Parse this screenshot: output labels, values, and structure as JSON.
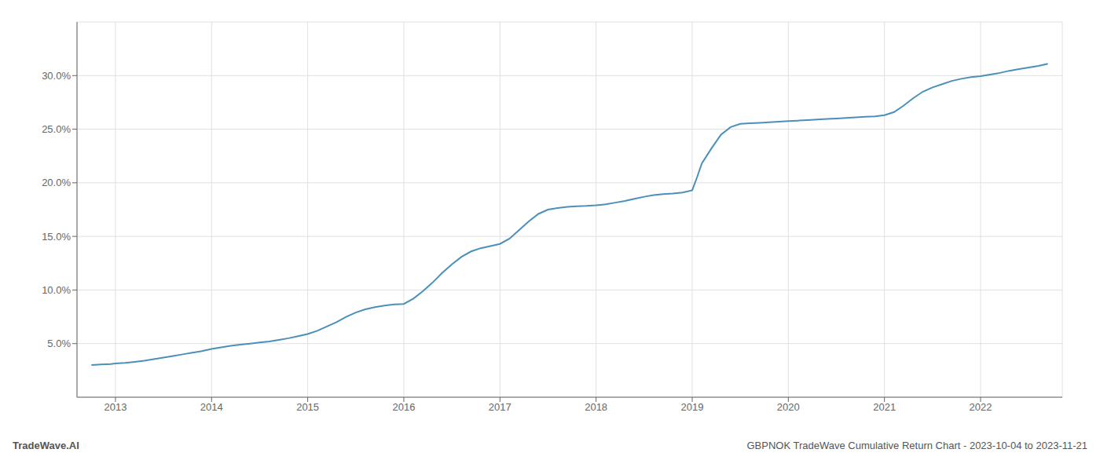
{
  "chart_data": {
    "type": "line",
    "annotations": [
      "TradeWave.AI",
      "GBPNOK TradeWave Cumulative Return Chart - 2023-10-04 to 2023-11-21"
    ],
    "x": [
      2012.75,
      2012.85,
      2012.95,
      2013.0,
      2013.1,
      2013.2,
      2013.3,
      2013.4,
      2013.5,
      2013.6,
      2013.7,
      2013.8,
      2013.9,
      2014.0,
      2014.1,
      2014.2,
      2014.3,
      2014.4,
      2014.5,
      2014.6,
      2014.7,
      2014.8,
      2014.9,
      2015.0,
      2015.1,
      2015.2,
      2015.3,
      2015.4,
      2015.5,
      2015.6,
      2015.7,
      2015.8,
      2015.9,
      2016.0,
      2016.1,
      2016.2,
      2016.3,
      2016.4,
      2016.5,
      2016.6,
      2016.7,
      2016.8,
      2016.9,
      2017.0,
      2017.1,
      2017.2,
      2017.3,
      2017.4,
      2017.5,
      2017.6,
      2017.7,
      2017.8,
      2017.9,
      2018.0,
      2018.1,
      2018.2,
      2018.3,
      2018.4,
      2018.5,
      2018.6,
      2018.7,
      2018.8,
      2018.9,
      2019.0,
      2019.05,
      2019.1,
      2019.2,
      2019.3,
      2019.4,
      2019.5,
      2019.6,
      2019.7,
      2019.8,
      2019.9,
      2020.0,
      2020.1,
      2020.2,
      2020.3,
      2020.4,
      2020.5,
      2020.6,
      2020.7,
      2020.8,
      2020.9,
      2021.0,
      2021.1,
      2021.2,
      2021.3,
      2021.4,
      2021.5,
      2021.6,
      2021.7,
      2021.8,
      2021.9,
      2022.0,
      2022.1,
      2022.2,
      2022.3,
      2022.4,
      2022.5,
      2022.6,
      2022.7
    ],
    "values": [
      3.0,
      3.05,
      3.1,
      3.15,
      3.2,
      3.3,
      3.4,
      3.55,
      3.7,
      3.85,
      4.0,
      4.15,
      4.3,
      4.5,
      4.65,
      4.8,
      4.9,
      5.0,
      5.1,
      5.2,
      5.35,
      5.5,
      5.7,
      5.9,
      6.2,
      6.6,
      7.0,
      7.5,
      7.9,
      8.2,
      8.4,
      8.55,
      8.65,
      8.7,
      9.2,
      9.9,
      10.7,
      11.6,
      12.4,
      13.1,
      13.6,
      13.9,
      14.1,
      14.3,
      14.8,
      15.6,
      16.4,
      17.1,
      17.5,
      17.65,
      17.75,
      17.82,
      17.85,
      17.9,
      18.0,
      18.15,
      18.3,
      18.5,
      18.7,
      18.85,
      18.95,
      19.0,
      19.1,
      19.3,
      20.5,
      21.8,
      23.2,
      24.5,
      25.2,
      25.5,
      25.55,
      25.6,
      25.65,
      25.7,
      25.75,
      25.8,
      25.85,
      25.9,
      25.95,
      26.0,
      26.05,
      26.1,
      26.15,
      26.2,
      26.3,
      26.6,
      27.2,
      27.9,
      28.5,
      28.9,
      29.2,
      29.5,
      29.7,
      29.85,
      29.95,
      30.1,
      30.25,
      30.45,
      30.6,
      30.75,
      30.9,
      31.1
    ],
    "color": "#4a90b8",
    "xlim": [
      2012.6,
      2022.85
    ],
    "xticks": [
      2013,
      2014,
      2015,
      2016,
      2017,
      2018,
      2019,
      2020,
      2021,
      2022
    ],
    "ylim": [
      0,
      35
    ],
    "yticks": [
      {
        "value": 5.0,
        "label": "5.0%"
      },
      {
        "value": 10.0,
        "label": "10.0%"
      },
      {
        "value": 15.0,
        "label": "15.0%"
      },
      {
        "value": 20.0,
        "label": "20.0%"
      },
      {
        "value": 25.0,
        "label": "25.0%"
      },
      {
        "value": 30.0,
        "label": "30.0%"
      }
    ],
    "grid": true
  }
}
